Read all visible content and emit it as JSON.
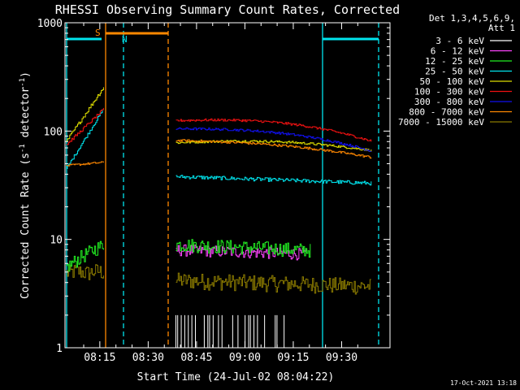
{
  "chart_data": {
    "type": "line",
    "title": "RHESSI Observing Summary Count Rates, Corrected",
    "xlabel": "Start Time (24-Jul-02 08:04:22)",
    "ylabel_main": "Corrected Count Rate (s",
    "ylabel_sup1": "-1",
    "ylabel_mid": " detector",
    "ylabel_sup2": "-1",
    "ylabel_end": ")",
    "y_scale": "log",
    "ylim": [
      1,
      1000
    ],
    "xlim_minutes": [
      8.07,
      9.75
    ],
    "x_ticks": [
      {
        "label": "08:15",
        "min": 15
      },
      {
        "label": "08:30",
        "min": 30
      },
      {
        "label": "08:45",
        "min": 45
      },
      {
        "label": "09:00",
        "min": 60
      },
      {
        "label": "09:15",
        "min": 75
      },
      {
        "label": "09:30",
        "min": 90
      }
    ],
    "y_ticks": [
      {
        "label": "1",
        "value": 1
      },
      {
        "label": "10",
        "value": 10
      },
      {
        "label": "100",
        "value": 100
      },
      {
        "label": "1000",
        "value": 1000
      }
    ],
    "legend_header_1": "Det 1,3,4,5,6,9,",
    "legend_header_2": "Att 1",
    "legend_position": "right",
    "series": [
      {
        "name": "3 - 6 keV",
        "color": "#ffffff"
      },
      {
        "name": "6 - 12 keV",
        "color": "#ff44ff"
      },
      {
        "name": "12 - 25 keV",
        "color": "#22ee22"
      },
      {
        "name": "25 - 50 keV",
        "color": "#00e5ee"
      },
      {
        "name": "50 - 100 keV",
        "color": "#dddd00"
      },
      {
        "name": "100 - 300 keV",
        "color": "#ee1111"
      },
      {
        "name": "300 - 800 keV",
        "color": "#1010ee"
      },
      {
        "name": "800 - 7000 keV",
        "color": "#ff8800"
      },
      {
        "name": "7000 - 15000 keV",
        "color": "#8a7a00"
      }
    ],
    "annotations": [
      {
        "label": "S",
        "color": "#ff8800"
      },
      {
        "label": "N",
        "color": "#00e5ee"
      }
    ],
    "timestamp": "17-Oct-2021 13:18"
  }
}
